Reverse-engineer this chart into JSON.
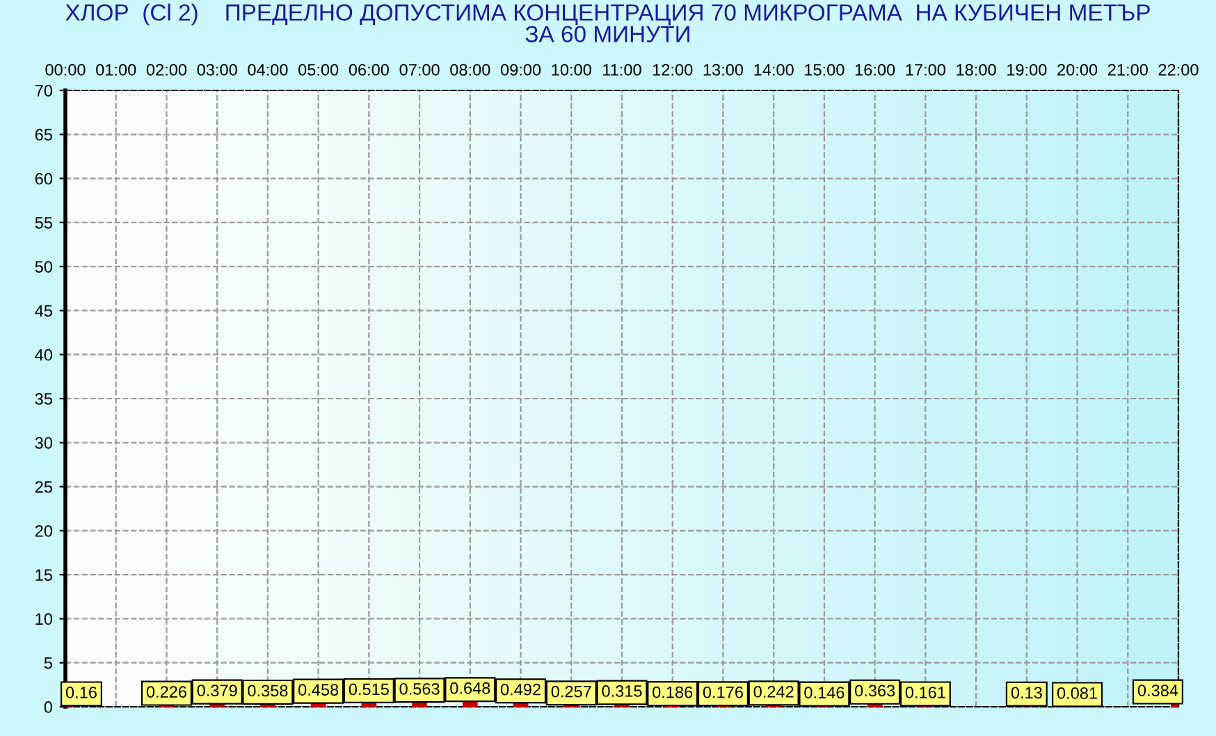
{
  "chart_data": {
    "type": "bar",
    "title": "ХЛОР  (Cl 2)    ПРЕДЕЛНО ДОПУСТИМА КОНЦЕНТРАЦИЯ 70 МИКРОГРАМА  НА КУБИЧЕН МЕТЪР\nЗА 60 МИНУТИ",
    "categories": [
      "00:00",
      "01:00",
      "02:00",
      "03:00",
      "04:00",
      "05:00",
      "06:00",
      "07:00",
      "08:00",
      "09:00",
      "10:00",
      "11:00",
      "12:00",
      "13:00",
      "14:00",
      "15:00",
      "16:00",
      "17:00",
      "18:00",
      "19:00",
      "20:00",
      "21:00",
      "22:00"
    ],
    "values": [
      0.16,
      null,
      0.226,
      0.379,
      0.358,
      0.458,
      0.515,
      0.563,
      0.648,
      0.492,
      0.257,
      0.315,
      0.186,
      0.176,
      0.242,
      0.146,
      0.363,
      0.161,
      null,
      0.13,
      0.081,
      null,
      0.384
    ],
    "color": "#cc0000",
    "ylim": [
      0,
      70
    ],
    "yticks": [
      0,
      5,
      10,
      15,
      20,
      25,
      30,
      35,
      40,
      45,
      50,
      55,
      60,
      65,
      70
    ],
    "grid": true,
    "data_labels": true
  }
}
